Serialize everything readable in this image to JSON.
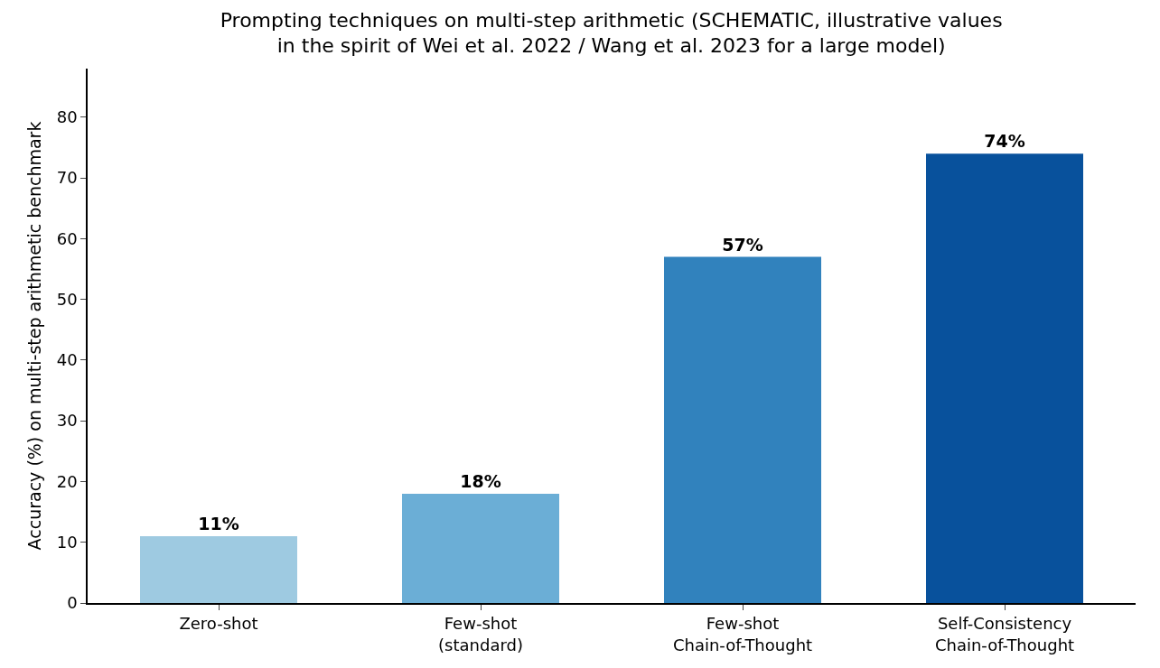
{
  "chart_data": {
    "type": "bar",
    "title": "Prompting techniques on multi-step arithmetic (SCHEMATIC, illustrative values\nin the spirit of Wei et al. 2022 / Wang et al. 2023 for a large model)",
    "ylabel": "Accuracy (%) on multi-step arithmetic benchmark",
    "categories": [
      "Zero-shot",
      "Few-shot\n(standard)",
      "Few-shot\nChain-of-Thought",
      "Self-Consistency\nChain-of-Thought"
    ],
    "values": [
      11,
      18,
      57,
      74
    ],
    "value_labels": [
      "11%",
      "18%",
      "57%",
      "74%"
    ],
    "colors": [
      "#9ecae1",
      "#6baed6",
      "#3182bd",
      "#08519c"
    ],
    "ylim": [
      0,
      88
    ],
    "yticks": [
      0,
      10,
      20,
      30,
      40,
      50,
      60,
      70,
      80
    ],
    "legend": false
  }
}
